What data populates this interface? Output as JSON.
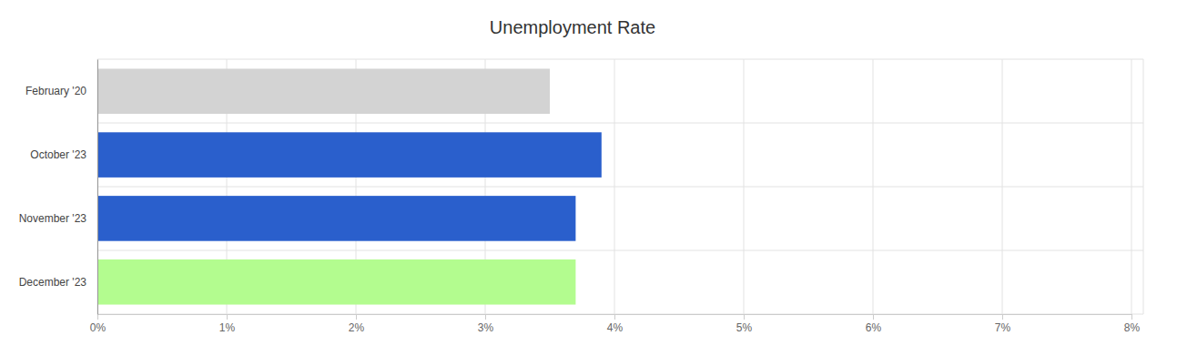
{
  "chart_data": {
    "type": "bar",
    "orientation": "horizontal",
    "title": "Unemployment Rate",
    "categories": [
      "February '20",
      "October '23",
      "November '23",
      "December '23"
    ],
    "values": [
      3.5,
      3.9,
      3.7,
      3.7
    ],
    "colors": [
      "#d3d3d3",
      "#2a5fcc",
      "#2a5fcc",
      "#b3fc8f"
    ],
    "xlim": [
      0,
      8
    ],
    "xticks": [
      {
        "value": 0,
        "label": "0%"
      },
      {
        "value": 1,
        "label": "1%"
      },
      {
        "value": 2,
        "label": "2%"
      },
      {
        "value": 3,
        "label": "3%"
      },
      {
        "value": 4,
        "label": "4%"
      },
      {
        "value": 5,
        "label": "5%"
      },
      {
        "value": 6,
        "label": "6%"
      },
      {
        "value": 7,
        "label": "7%"
      },
      {
        "value": 8,
        "label": "8%"
      }
    ],
    "grid": true
  }
}
